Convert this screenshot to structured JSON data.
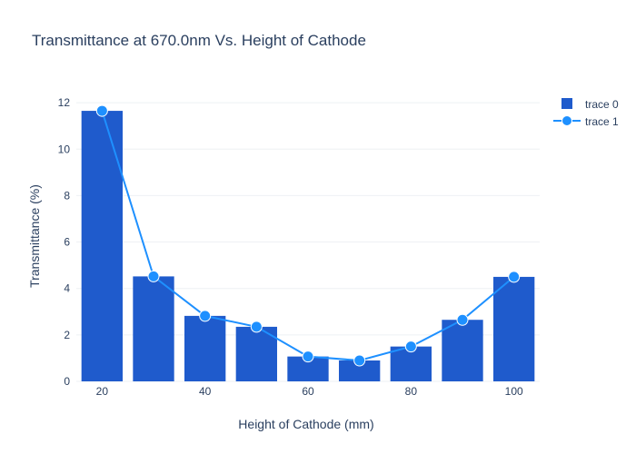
{
  "chart_data": {
    "type": "bar",
    "title": "Transmittance at 670.0nm Vs. Height of Cathode",
    "xlabel": "Height of Cathode (mm)",
    "ylabel": "Transmittance (%)",
    "xlim": [
      15,
      105
    ],
    "ylim": [
      0,
      12.2
    ],
    "xticks": [
      20,
      40,
      60,
      80,
      100
    ],
    "yticks": [
      0,
      2,
      4,
      6,
      8,
      10,
      12
    ],
    "grid": true,
    "legend_position": "top-right",
    "series": [
      {
        "name": "trace 0",
        "kind": "bar",
        "color": "#1f5bcc",
        "x": [
          20,
          30,
          40,
          50,
          60,
          70,
          80,
          90,
          100
        ],
        "values": [
          11.65,
          4.52,
          2.82,
          2.35,
          1.07,
          0.9,
          1.5,
          2.65,
          4.5
        ]
      },
      {
        "name": "trace 1",
        "kind": "line",
        "color": "#1e90ff",
        "x": [
          20,
          30,
          40,
          50,
          60,
          70,
          80,
          90,
          100
        ],
        "values": [
          11.65,
          4.52,
          2.82,
          2.35,
          1.07,
          0.9,
          1.5,
          2.65,
          4.5
        ]
      }
    ]
  }
}
